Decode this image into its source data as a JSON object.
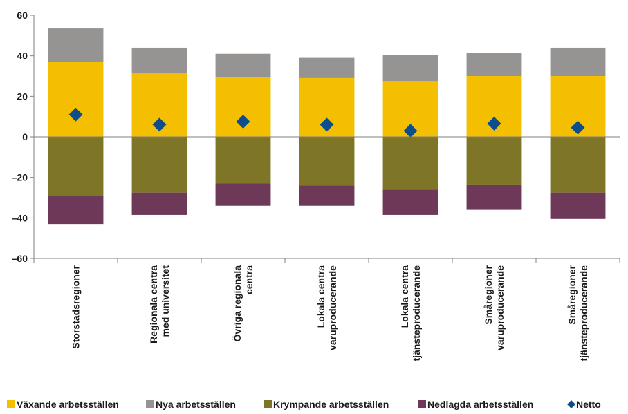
{
  "chart_data": {
    "type": "bar",
    "stacked": true,
    "title": "",
    "xlabel": "",
    "ylabel": "",
    "ylim": [
      -60,
      60
    ],
    "yticks": [
      "60",
      "40",
      "20",
      "0",
      "–20",
      "–40",
      "–60"
    ],
    "ytick_values": [
      60,
      40,
      20,
      0,
      -20,
      -40,
      -60
    ],
    "grid": false,
    "legend_position": "bottom",
    "categories": [
      [
        "Storstadsregioner"
      ],
      [
        "Regionala centra",
        "med universitet"
      ],
      [
        "Övriga regionala",
        "centra"
      ],
      [
        "Lokala centra",
        "varuproducerande"
      ],
      [
        "Lokala centra",
        "tjänsteproducerande"
      ],
      [
        "Småregioner",
        "varuproducerande"
      ],
      [
        "Småregioner",
        "tjänsteproducerande"
      ]
    ],
    "series": [
      {
        "name": "Växande arbetsställen",
        "color": "#f4bf00",
        "marker": "square",
        "values": [
          37,
          31.5,
          29.5,
          29,
          27.5,
          30,
          30
        ]
      },
      {
        "name": "Nya arbetsställen",
        "color": "#959492",
        "marker": "square",
        "values": [
          16.5,
          12.5,
          11.5,
          10,
          13,
          11.5,
          14
        ]
      },
      {
        "name": "Krympande arbetsställen",
        "color": "#7e7526",
        "marker": "square",
        "values": [
          -29,
          -27.5,
          -23,
          -24,
          -26,
          -23.5,
          -27.5
        ]
      },
      {
        "name": "Nedlagda arbetsställen",
        "color": "#6e3858",
        "marker": "square",
        "values": [
          -14,
          -11,
          -11,
          -10,
          -12.5,
          -12.5,
          -13
        ]
      },
      {
        "name": "Netto",
        "color": "#0e4d8c",
        "marker": "diamond",
        "type": "scatter",
        "values": [
          11,
          6,
          7.5,
          6,
          3,
          6.5,
          4.5
        ]
      }
    ]
  }
}
